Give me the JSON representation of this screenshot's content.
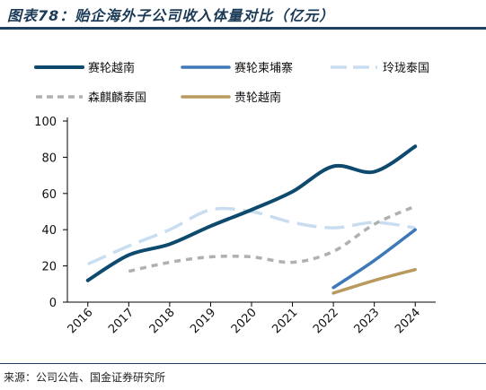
{
  "header": {
    "title": "图表78：贻企海外子公司收入体量对比（亿元）"
  },
  "footer": {
    "source": "来源：公司公告、国金证券研究所"
  },
  "colors": {
    "frame": "#1f3f64",
    "axis": "#000000"
  },
  "chart_data": {
    "type": "line",
    "title": "",
    "xlabel": "",
    "ylabel": "",
    "categories": [
      "2016",
      "2017",
      "2018",
      "2019",
      "2020",
      "2021",
      "2022",
      "2023",
      "2024"
    ],
    "ylim": [
      0,
      100
    ],
    "yticks": [
      0,
      20,
      40,
      60,
      80,
      100
    ],
    "grid": false,
    "legend_placement": "top",
    "series": [
      {
        "name": "赛轮越南",
        "color": "#0d4a6e",
        "dash": "solid",
        "values": [
          12,
          26,
          32,
          42,
          51,
          61,
          75,
          72,
          86
        ]
      },
      {
        "name": "赛轮柬埔寨",
        "color": "#3e78b8",
        "dash": "solid",
        "values": [
          null,
          null,
          null,
          null,
          null,
          null,
          8,
          23,
          40
        ]
      },
      {
        "name": "玲珑泰国",
        "color": "#c9ddf0",
        "dash": "long",
        "values": [
          21,
          31,
          40,
          51,
          50,
          44,
          41,
          44,
          41
        ]
      },
      {
        "name": "森麒麟泰国",
        "color": "#b0b0b0",
        "dash": "short",
        "values": [
          null,
          17,
          22,
          25,
          25,
          22,
          28,
          43,
          53
        ]
      },
      {
        "name": "贵轮越南",
        "color": "#b89a5e",
        "dash": "solid",
        "values": [
          null,
          null,
          null,
          null,
          null,
          null,
          5,
          12,
          18
        ]
      }
    ]
  }
}
